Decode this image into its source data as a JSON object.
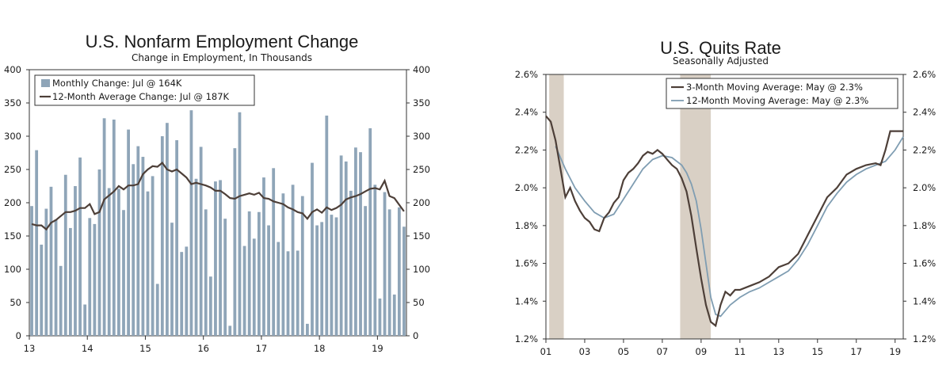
{
  "charts": [
    {
      "title": "U.S. Nonfarm Employment Change",
      "subtitle": "Change in Employment, In Thousands",
      "legend": {
        "bar_label": "Monthly Change: Jul @ 164K",
        "line_label": "12-Month Average Change: Jul @ 187K"
      }
    },
    {
      "title": "U.S. Quits Rate",
      "subtitle": "Seasonally Adjusted",
      "legend": {
        "line1_label": "3-Month Moving Average: May @ 2.3%",
        "line2_label": "12-Month Moving Average: May @ 2.3%"
      }
    }
  ],
  "chart_data": [
    {
      "type": "bar",
      "title": "U.S. Nonfarm Employment Change",
      "subtitle": "Change in Employment, In Thousands",
      "x_tick_labels": [
        "13",
        "14",
        "15",
        "16",
        "17",
        "18",
        "19"
      ],
      "y_tick_labels": [
        "0",
        "50",
        "100",
        "150",
        "200",
        "250",
        "300",
        "350",
        "400"
      ],
      "ylim": [
        0,
        400
      ],
      "period": "Jan 2013 - Jul 2019 (monthly)",
      "series": [
        {
          "name": "Monthly Change: Jul @ 164K",
          "kind": "bar",
          "color": "#8fa5b8",
          "values": [
            195,
            279,
            137,
            191,
            224,
            175,
            105,
            242,
            162,
            225,
            268,
            47,
            177,
            168,
            250,
            327,
            222,
            325,
            221,
            189,
            310,
            258,
            285,
            269,
            217,
            240,
            78,
            300,
            320,
            170,
            294,
            126,
            134,
            339,
            236,
            284,
            190,
            89,
            232,
            234,
            176,
            15,
            282,
            336,
            135,
            187,
            146,
            186,
            238,
            166,
            252,
            141,
            214,
            127,
            227,
            128,
            210,
            18,
            260,
            166,
            171,
            331,
            182,
            178,
            271,
            262,
            218,
            283,
            276,
            195,
            312,
            227,
            56,
            216,
            190,
            62,
            193,
            164
          ]
        },
        {
          "name": "12-Month Average Change: Jul @ 187K",
          "kind": "line",
          "color": "#4d3f38",
          "values": [
            168,
            166,
            166,
            160,
            170,
            174,
            180,
            186,
            186,
            188,
            192,
            192,
            198,
            183,
            186,
            205,
            211,
            217,
            225,
            220,
            226,
            226,
            228,
            243,
            250,
            255,
            254,
            260,
            250,
            247,
            250,
            244,
            238,
            228,
            230,
            228,
            226,
            223,
            218,
            218,
            213,
            207,
            206,
            210,
            212,
            214,
            212,
            215,
            207,
            206,
            202,
            200,
            198,
            193,
            190,
            186,
            184,
            176,
            186,
            190,
            185,
            193,
            189,
            192,
            197,
            205,
            208,
            210,
            213,
            217,
            221,
            222,
            220,
            233,
            210,
            207,
            197,
            187
          ]
        }
      ]
    },
    {
      "type": "line",
      "title": "U.S. Quits Rate",
      "subtitle": "Seasonally Adjusted",
      "x_tick_labels": [
        "01",
        "03",
        "05",
        "07",
        "09",
        "11",
        "13",
        "15",
        "17",
        "19"
      ],
      "y_tick_labels": [
        "1.2%",
        "1.4%",
        "1.6%",
        "1.8%",
        "2.0%",
        "2.2%",
        "2.4%",
        "2.6%"
      ],
      "ylim": [
        1.2,
        2.6
      ],
      "x_range": [
        2001.0,
        2019.42
      ],
      "recessions": [
        [
          2001.17,
          2001.92
        ],
        [
          2007.92,
          2009.5
        ]
      ],
      "series": [
        {
          "name": "3-Month Moving Average: May @ 2.3%",
          "color": "#4d3f38",
          "x": [
            2001.0,
            2001.25,
            2001.5,
            2001.75,
            2002.0,
            2002.25,
            2002.5,
            2002.75,
            2003.0,
            2003.25,
            2003.5,
            2003.75,
            2004.0,
            2004.25,
            2004.5,
            2004.75,
            2005.0,
            2005.25,
            2005.5,
            2005.75,
            2006.0,
            2006.25,
            2006.5,
            2006.75,
            2007.0,
            2007.25,
            2007.5,
            2007.75,
            2008.0,
            2008.25,
            2008.5,
            2008.75,
            2009.0,
            2009.25,
            2009.5,
            2009.75,
            2010.0,
            2010.25,
            2010.5,
            2010.75,
            2011.0,
            2011.5,
            2012.0,
            2012.5,
            2013.0,
            2013.5,
            2014.0,
            2014.5,
            2015.0,
            2015.5,
            2016.0,
            2016.5,
            2017.0,
            2017.5,
            2018.0,
            2018.25,
            2018.5,
            2018.75,
            2019.0,
            2019.42
          ],
          "y": [
            2.38,
            2.35,
            2.25,
            2.1,
            1.95,
            2.0,
            1.93,
            1.88,
            1.84,
            1.82,
            1.78,
            1.77,
            1.84,
            1.87,
            1.92,
            1.95,
            2.04,
            2.08,
            2.1,
            2.13,
            2.17,
            2.19,
            2.18,
            2.2,
            2.18,
            2.15,
            2.12,
            2.1,
            2.05,
            1.98,
            1.85,
            1.68,
            1.52,
            1.38,
            1.29,
            1.27,
            1.38,
            1.45,
            1.43,
            1.46,
            1.46,
            1.48,
            1.5,
            1.53,
            1.58,
            1.6,
            1.65,
            1.75,
            1.85,
            1.95,
            2.0,
            2.07,
            2.1,
            2.12,
            2.13,
            2.12,
            2.2,
            2.3,
            2.3,
            2.3
          ]
        },
        {
          "name": "12-Month Moving Average: May @ 2.3%",
          "color": "#7f9db2",
          "x": [
            2001.5,
            2002.0,
            2002.5,
            2003.0,
            2003.5,
            2004.0,
            2004.5,
            2005.0,
            2005.5,
            2006.0,
            2006.5,
            2007.0,
            2007.5,
            2008.0,
            2008.25,
            2008.5,
            2008.75,
            2009.0,
            2009.25,
            2009.5,
            2009.75,
            2010.0,
            2010.5,
            2011.0,
            2011.5,
            2012.0,
            2012.5,
            2013.0,
            2013.5,
            2014.0,
            2014.5,
            2015.0,
            2015.5,
            2016.0,
            2016.5,
            2017.0,
            2017.5,
            2018.0,
            2018.5,
            2019.0,
            2019.42
          ],
          "y": [
            2.22,
            2.1,
            2.0,
            1.93,
            1.87,
            1.84,
            1.86,
            1.94,
            2.02,
            2.1,
            2.15,
            2.17,
            2.16,
            2.12,
            2.08,
            2.02,
            1.93,
            1.78,
            1.6,
            1.42,
            1.33,
            1.32,
            1.38,
            1.42,
            1.45,
            1.47,
            1.5,
            1.53,
            1.56,
            1.62,
            1.7,
            1.8,
            1.9,
            1.97,
            2.03,
            2.07,
            2.1,
            2.12,
            2.14,
            2.2,
            2.27
          ]
        }
      ]
    }
  ]
}
